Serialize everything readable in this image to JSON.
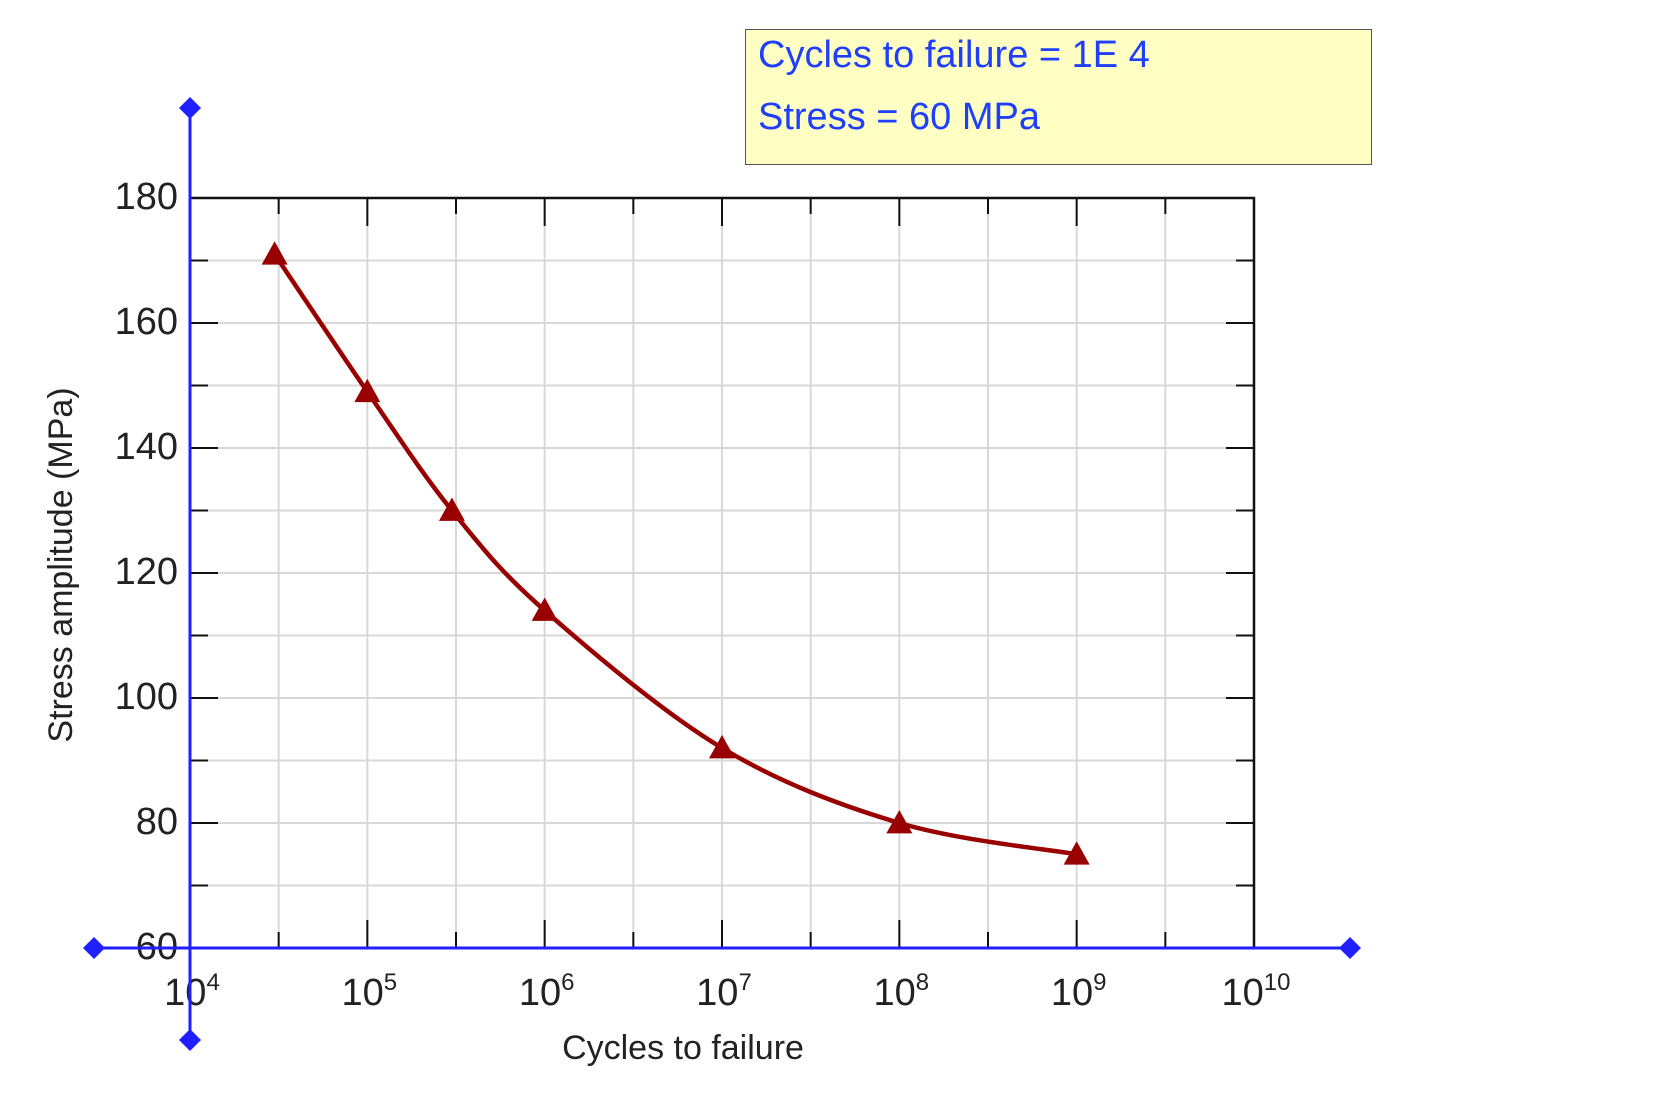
{
  "readout": {
    "cycles_line": "Cycles to failure = 1E 4",
    "stress_line": "Stress = 60 MPa"
  },
  "colors": {
    "curve": "#990000",
    "marker": "#990000",
    "cursor_axes": "#1f1fff",
    "grid": "#d8d8d8",
    "frame": "#111111",
    "readout_bg": "#ffffc4",
    "readout_text": "#1f3fff"
  },
  "chart_data": {
    "type": "line",
    "xlabel": "Cycles to failure",
    "ylabel": "Stress amplitude (MPa)",
    "x_scale": "log",
    "xlim": [
      10000,
      10000000000
    ],
    "ylim": [
      60,
      180
    ],
    "x_ticks": [
      {
        "value": 10000,
        "base": "10",
        "exp": "4"
      },
      {
        "value": 100000,
        "base": "10",
        "exp": "5"
      },
      {
        "value": 1000000,
        "base": "10",
        "exp": "6"
      },
      {
        "value": 10000000,
        "base": "10",
        "exp": "7"
      },
      {
        "value": 100000000,
        "base": "10",
        "exp": "8"
      },
      {
        "value": 1000000000,
        "base": "10",
        "exp": "9"
      },
      {
        "value": 10000000000,
        "base": "10",
        "exp": "10"
      }
    ],
    "y_ticks": [
      60,
      80,
      100,
      120,
      140,
      160,
      180
    ],
    "grid": true,
    "marker": "triangle",
    "series": [
      {
        "x": [
          30000,
          100000,
          300000,
          1000000,
          10000000,
          100000000,
          1000000000
        ],
        "y": [
          171,
          149,
          130,
          114,
          92,
          80,
          75
        ]
      }
    ],
    "cursor": {
      "x": 10000,
      "y": 60
    }
  }
}
